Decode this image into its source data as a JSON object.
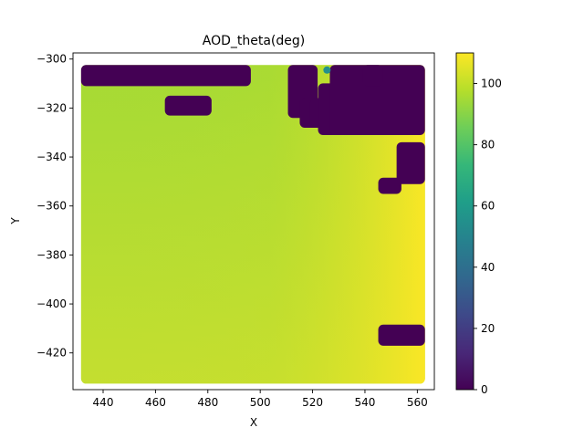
{
  "chart_data": {
    "type": "scatter",
    "title": "AOD_theta(deg)",
    "xlabel": "X",
    "ylabel": "Y",
    "xlim": [
      428.5,
      566.5
    ],
    "ylim": [
      -435.0,
      -297.5
    ],
    "x_ticks": [
      440,
      460,
      480,
      500,
      520,
      540,
      560
    ],
    "x_tick_labels": [
      "440",
      "460",
      "480",
      "500",
      "520",
      "540",
      "560"
    ],
    "y_ticks": [
      -300,
      -320,
      -340,
      -360,
      -380,
      -400,
      -420
    ],
    "y_tick_labels": [
      "−300",
      "−320",
      "−340",
      "−360",
      "−380",
      "−400",
      "−420"
    ],
    "grid": false,
    "colormap": "viridis",
    "colorbar": {
      "range": [
        0,
        110
      ],
      "ticks": [
        0,
        20,
        40,
        60,
        80,
        100
      ],
      "tick_labels": [
        "0",
        "20",
        "40",
        "60",
        "80",
        "100"
      ],
      "stops": [
        "#440154",
        "#482878",
        "#3e4989",
        "#31688e",
        "#26828e",
        "#1f9e89",
        "#35b779",
        "#6ece58",
        "#b5de2b",
        "#fde725"
      ]
    },
    "field": {
      "x_range": [
        433.5,
        561.0
      ],
      "y_range": [
        -430.5,
        -304.5
      ],
      "value_range": [
        92,
        110
      ],
      "gradient": "increasing toward lower-right",
      "background_value": 95
    },
    "regions": [
      {
        "x": [
          433.5,
          494.5
        ],
        "y": [
          -309.0,
          -304.5
        ],
        "value": 0
      },
      {
        "x": [
          465.5,
          479.5
        ],
        "y": [
          -321.0,
          -317.0
        ],
        "value": 0
      },
      {
        "x": [
          512.5,
          520.0
        ],
        "y": [
          -322.0,
          -304.5
        ],
        "value": 0
      },
      {
        "x": [
          517.0,
          521.0
        ],
        "y": [
          -326.0,
          -318.0
        ],
        "value": 0
      },
      {
        "x": [
          521.0,
          526.0
        ],
        "y": [
          -326.0,
          -318.0
        ],
        "value": 0
      },
      {
        "x": [
          524.0,
          530.0
        ],
        "y": [
          -329.0,
          -312.0
        ],
        "value": 0
      },
      {
        "x": [
          528.5,
          561.0
        ],
        "y": [
          -329.0,
          -304.5
        ],
        "value": 0
      },
      {
        "x": [
          541.0,
          545.0
        ],
        "y": [
          -309.0,
          -304.5
        ],
        "value": 0
      },
      {
        "x": [
          554.0,
          561.0
        ],
        "y": [
          -349.0,
          -336.0
        ],
        "value": 0
      },
      {
        "x": [
          547.0,
          552.0
        ],
        "y": [
          -353.0,
          -350.5
        ],
        "value": 0
      },
      {
        "x": [
          547.0,
          561.0
        ],
        "y": [
          -415.0,
          -410.5
        ],
        "value": 0
      }
    ],
    "highlights": [
      {
        "x": 525.5,
        "y": -304.5,
        "value": 55
      }
    ]
  }
}
